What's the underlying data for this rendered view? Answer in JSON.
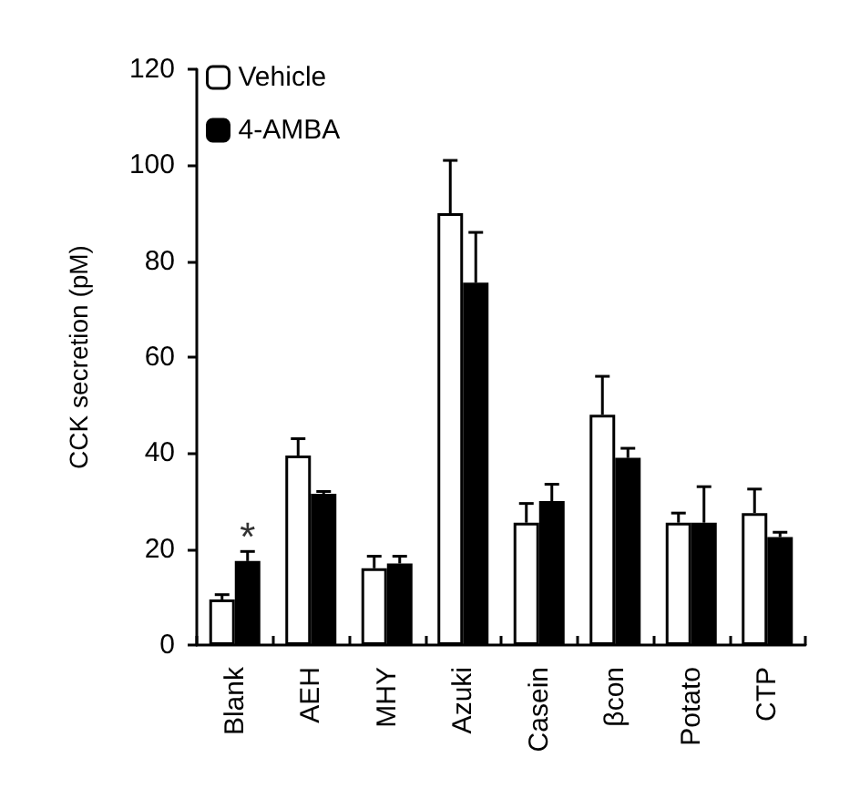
{
  "chart_data": {
    "type": "bar",
    "ylabel": "CCK secretion (pM)",
    "categories": [
      "Blank",
      "AEH",
      "MHY",
      "Azuki",
      "Casein",
      "βcon",
      "Potato",
      "CTP"
    ],
    "series": [
      {
        "name": "Vehicle",
        "color": "#ffffff",
        "values": [
          9.5,
          39.5,
          16,
          90,
          25.5,
          48,
          25.5,
          27.5
        ],
        "errors": [
          1,
          3.5,
          2.5,
          11,
          4,
          8,
          2,
          5
        ]
      },
      {
        "name": "4-AMBA",
        "color": "#000000",
        "values": [
          17.5,
          31.5,
          17,
          75.5,
          30,
          39,
          25.5,
          22.5
        ],
        "errors": [
          2,
          0.5,
          1.5,
          10.5,
          3.5,
          2,
          7.5,
          1
        ]
      }
    ],
    "ylim": [
      0,
      120
    ],
    "yticks": [
      0,
      20,
      40,
      60,
      80,
      100,
      120
    ],
    "grid": false,
    "legend": "top left",
    "annotations": [
      {
        "text": "*",
        "x": "Blank",
        "y": 19.5
      }
    ]
  }
}
